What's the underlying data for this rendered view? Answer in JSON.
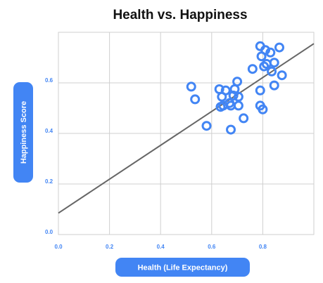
{
  "chart_data": {
    "type": "scatter",
    "title": "Health vs. Happiness",
    "xlabel": "Health (Life Expectancy)",
    "ylabel": "Happiness Score",
    "xlim": [
      0.0,
      1.0
    ],
    "ylim": [
      0.0,
      0.8
    ],
    "x_ticks": [
      "0.0",
      "0.2",
      "0.4",
      "0.6",
      "0.8"
    ],
    "y_ticks": [
      "0.0",
      "0.2",
      "0.4",
      "0.6"
    ],
    "grid": true,
    "colors": {
      "point": "#4285f4",
      "trendline": "#666666",
      "pill": "#4285f4",
      "tick": "#4285f4",
      "grid": "#cfcfcf"
    },
    "trendline": {
      "x": [
        0.0,
        1.0
      ],
      "y": [
        0.085,
        0.755
      ]
    },
    "points": [
      {
        "x": 0.52,
        "y": 0.585
      },
      {
        "x": 0.535,
        "y": 0.535
      },
      {
        "x": 0.58,
        "y": 0.43
      },
      {
        "x": 0.63,
        "y": 0.575
      },
      {
        "x": 0.635,
        "y": 0.505
      },
      {
        "x": 0.64,
        "y": 0.545
      },
      {
        "x": 0.645,
        "y": 0.51
      },
      {
        "x": 0.655,
        "y": 0.57
      },
      {
        "x": 0.67,
        "y": 0.52
      },
      {
        "x": 0.675,
        "y": 0.51
      },
      {
        "x": 0.675,
        "y": 0.415
      },
      {
        "x": 0.685,
        "y": 0.55
      },
      {
        "x": 0.69,
        "y": 0.575
      },
      {
        "x": 0.7,
        "y": 0.605
      },
      {
        "x": 0.705,
        "y": 0.545
      },
      {
        "x": 0.705,
        "y": 0.51
      },
      {
        "x": 0.725,
        "y": 0.46
      },
      {
        "x": 0.76,
        "y": 0.655
      },
      {
        "x": 0.79,
        "y": 0.57
      },
      {
        "x": 0.79,
        "y": 0.51
      },
      {
        "x": 0.79,
        "y": 0.745
      },
      {
        "x": 0.795,
        "y": 0.705
      },
      {
        "x": 0.8,
        "y": 0.495
      },
      {
        "x": 0.805,
        "y": 0.665
      },
      {
        "x": 0.81,
        "y": 0.73
      },
      {
        "x": 0.815,
        "y": 0.675
      },
      {
        "x": 0.83,
        "y": 0.72
      },
      {
        "x": 0.835,
        "y": 0.645
      },
      {
        "x": 0.845,
        "y": 0.59
      },
      {
        "x": 0.845,
        "y": 0.68
      },
      {
        "x": 0.865,
        "y": 0.74
      },
      {
        "x": 0.875,
        "y": 0.63
      }
    ]
  }
}
